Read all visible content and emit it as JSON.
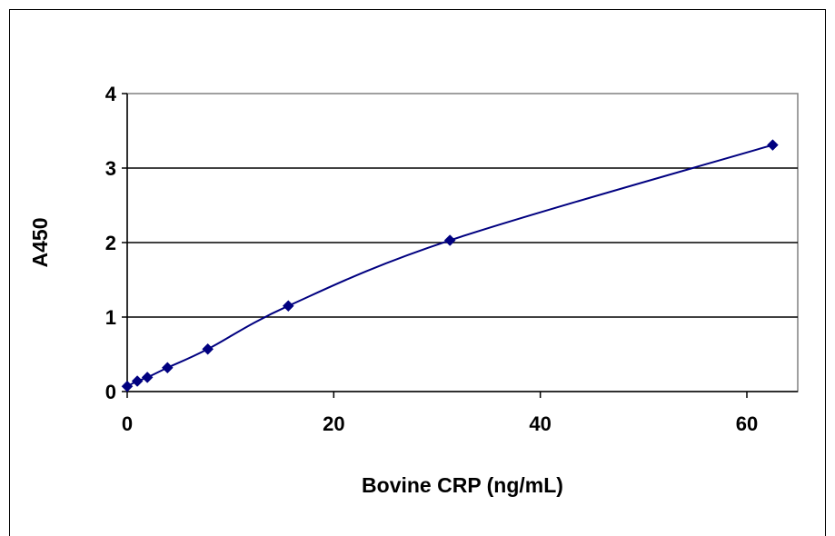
{
  "chart_data": {
    "type": "scatter",
    "title": "",
    "xlabel": "Bovine CRP (ng/mL)",
    "ylabel": "A450",
    "xlim": [
      0,
      65
    ],
    "ylim": [
      0,
      4
    ],
    "x_ticks": [
      0,
      20,
      40,
      60
    ],
    "y_ticks": [
      0,
      1,
      2,
      3,
      4
    ],
    "grid": "horizontal major gridlines",
    "legend": "none",
    "series": [
      {
        "marker": "diamond",
        "line": "smoothed",
        "color": "#000080",
        "points": [
          {
            "x": 0,
            "y": 0.07
          },
          {
            "x": 0.98,
            "y": 0.14
          },
          {
            "x": 1.95,
            "y": 0.19
          },
          {
            "x": 3.9,
            "y": 0.32
          },
          {
            "x": 7.8,
            "y": 0.57
          },
          {
            "x": 15.6,
            "y": 1.15
          },
          {
            "x": 31.25,
            "y": 2.03
          },
          {
            "x": 62.5,
            "y": 3.31
          }
        ]
      }
    ]
  },
  "colors": {
    "series": "#000080",
    "plot_border": "#808080",
    "gridline": "#000000"
  }
}
